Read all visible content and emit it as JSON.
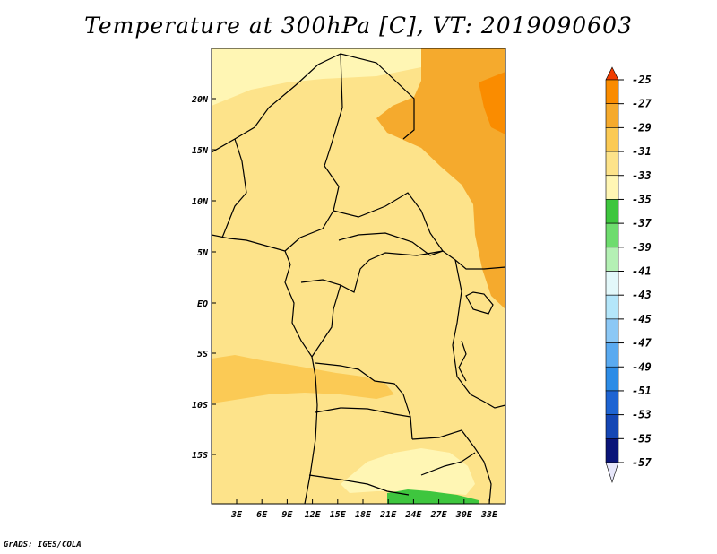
{
  "title": "Temperature at 300hPa [C], VT: 2019090603",
  "credit": "GrADS: IGES/COLA",
  "map": {
    "lat_labels": [
      "20N",
      "15N",
      "10N",
      "5N",
      "EQ",
      "5S",
      "10S",
      "15S"
    ],
    "lon_labels": [
      "3E",
      "6E",
      "9E",
      "12E",
      "15E",
      "18E",
      "21E",
      "24E",
      "27E",
      "30E",
      "33E"
    ],
    "background_level": "-33",
    "regions": [
      {
        "name": "northwest",
        "level": "-35"
      },
      {
        "name": "northeast",
        "level": "-29"
      },
      {
        "name": "northeast-core",
        "level": "-27"
      },
      {
        "name": "southwest-band",
        "level": "-31"
      },
      {
        "name": "south-tip",
        "level": "-35"
      },
      {
        "name": "south-edge",
        "level": "-37"
      }
    ]
  },
  "colorbar": {
    "levels": [
      {
        "label": "-25",
        "color": "#f03c00"
      },
      {
        "label": "-27",
        "color": "#fa8c00"
      },
      {
        "label": "-29",
        "color": "#f5aa2d"
      },
      {
        "label": "-31",
        "color": "#fbca55"
      },
      {
        "label": "-33",
        "color": "#fde38a"
      },
      {
        "label": "-35",
        "color": "#fff6b4"
      },
      {
        "label": "-37",
        "color": "#3ec63e"
      },
      {
        "label": "-39",
        "color": "#6edc6e"
      },
      {
        "label": "-41",
        "color": "#b4f0b4"
      },
      {
        "label": "-43",
        "color": "#e3f8fa"
      },
      {
        "label": "-45",
        "color": "#b4e6fa"
      },
      {
        "label": "-47",
        "color": "#8cc8f5"
      },
      {
        "label": "-49",
        "color": "#5aaaf0"
      },
      {
        "label": "-51",
        "color": "#2d8ce6"
      },
      {
        "label": "-53",
        "color": "#1e64d2"
      },
      {
        "label": "-55",
        "color": "#1446b4"
      },
      {
        "label": "-57",
        "color": "#0a1478"
      }
    ],
    "overflow_color": "#e6e6fa"
  }
}
